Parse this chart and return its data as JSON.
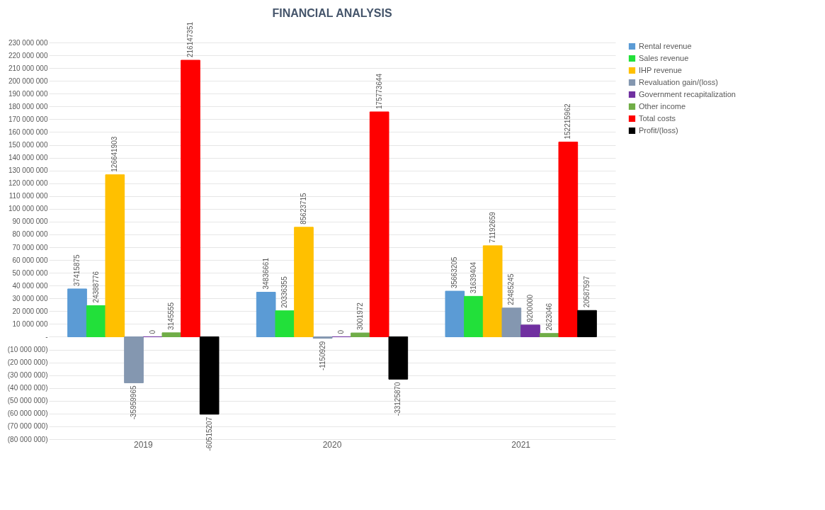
{
  "chart_data": {
    "type": "bar",
    "title": "FINANCIAL ANALYSIS",
    "categories": [
      "2019",
      "2020",
      "2021"
    ],
    "series": [
      {
        "name": "Rental revenue",
        "color": "#5b9bd5",
        "values": [
          37415875,
          34836661,
          35663205
        ]
      },
      {
        "name": "Sales revenue",
        "color": "#22e03a",
        "values": [
          24388776,
          20336355,
          31639404
        ]
      },
      {
        "name": "IHP revenue",
        "color": "#ffc000",
        "values": [
          126641903,
          85623715,
          71192659
        ]
      },
      {
        "name": "Revaluation gain/(loss)",
        "color": "#8497b0",
        "values": [
          -35959965,
          -1150929,
          22485245
        ]
      },
      {
        "name": "Government recapitalization",
        "color": "#7030a0",
        "values": [
          0,
          0,
          9200000
        ]
      },
      {
        "name": "Other income",
        "color": "#70ad47",
        "values": [
          3145555,
          3001972,
          2623046
        ]
      },
      {
        "name": "Total costs",
        "color": "#ff0000",
        "values": [
          216147351,
          175773644,
          152215962
        ]
      },
      {
        "name": "Profit/(loss)",
        "color": "#000000",
        "values": [
          -60515207,
          -33125870,
          20587597
        ]
      }
    ],
    "ylim": [
      -80000000,
      230000000
    ],
    "yticks": [
      {
        "value": -80000000,
        "label": "(80 000 000)"
      },
      {
        "value": -70000000,
        "label": "(70 000 000)"
      },
      {
        "value": -60000000,
        "label": "(60 000 000)"
      },
      {
        "value": -50000000,
        "label": "(50 000 000)"
      },
      {
        "value": -40000000,
        "label": "(40 000 000)"
      },
      {
        "value": -30000000,
        "label": "(30 000 000)"
      },
      {
        "value": -20000000,
        "label": "(20 000 000)"
      },
      {
        "value": -10000000,
        "label": "(10 000 000)"
      },
      {
        "value": 0,
        "label": "-"
      },
      {
        "value": 10000000,
        "label": "10 000 000"
      },
      {
        "value": 20000000,
        "label": "20 000 000"
      },
      {
        "value": 30000000,
        "label": "30 000 000"
      },
      {
        "value": 40000000,
        "label": "40 000 000"
      },
      {
        "value": 50000000,
        "label": "50 000 000"
      },
      {
        "value": 60000000,
        "label": "60 000 000"
      },
      {
        "value": 70000000,
        "label": "70 000 000"
      },
      {
        "value": 80000000,
        "label": "80 000 000"
      },
      {
        "value": 90000000,
        "label": "90 000 000"
      },
      {
        "value": 100000000,
        "label": "100 000 000"
      },
      {
        "value": 110000000,
        "label": "110 000 000"
      },
      {
        "value": 120000000,
        "label": "120 000 000"
      },
      {
        "value": 130000000,
        "label": "130 000 000"
      },
      {
        "value": 140000000,
        "label": "140 000 000"
      },
      {
        "value": 150000000,
        "label": "150 000 000"
      },
      {
        "value": 160000000,
        "label": "160 000 000"
      },
      {
        "value": 170000000,
        "label": "170 000 000"
      },
      {
        "value": 180000000,
        "label": "180 000 000"
      },
      {
        "value": 190000000,
        "label": "190 000 000"
      },
      {
        "value": 200000000,
        "label": "200 000 000"
      },
      {
        "value": 210000000,
        "label": "210 000 000"
      },
      {
        "value": 220000000,
        "label": "220 000 000"
      },
      {
        "value": 230000000,
        "label": "230 000 000"
      }
    ],
    "grid": true,
    "legend": "right",
    "data_labels": true
  }
}
